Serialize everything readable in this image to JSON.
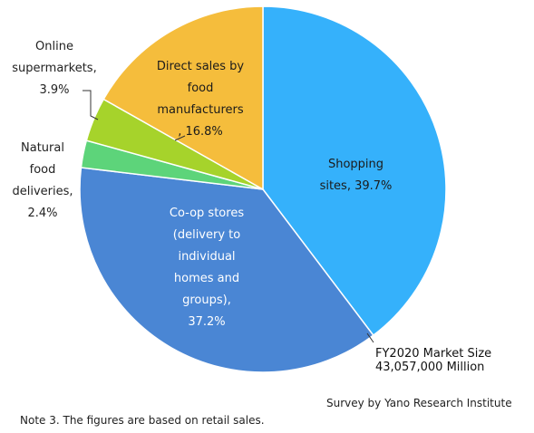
{
  "chart_data": {
    "type": "pie",
    "slices": [
      {
        "label": "Shopping sites, 39.7%",
        "value": 39.7,
        "color": "#35b1fb"
      },
      {
        "label": "Co-op stores (delivery to individual homes and groups), 37.2%",
        "value": 37.2,
        "color": "#4a86d4"
      },
      {
        "label": "Natural food deliveries, 2.4%",
        "value": 2.4,
        "color": "#5dd47a"
      },
      {
        "label": "Online supermarkets, 3.9%",
        "value": 3.9,
        "color": "#a6d32b"
      },
      {
        "label": "Direct sales by food manufacturers, 16.8%",
        "value": 16.8,
        "color": "#f5bd3c"
      }
    ],
    "label_lines": {
      "shopping": [
        "Shopping",
        "sites, 39.7%"
      ],
      "coop": [
        "Co-op stores",
        "(delivery to",
        "individual",
        "homes and",
        "groups),",
        "37.2%"
      ],
      "natural": [
        "Natural",
        "food",
        "deliveries,",
        "2.4%"
      ],
      "online": [
        "Online",
        "supermarkets,",
        "3.9%"
      ],
      "direct": [
        "Direct sales by",
        "food",
        "manufacturers",
        ", 16.8%"
      ]
    },
    "start_angle_deg": 0,
    "direction": "clockwise",
    "legend": "none"
  },
  "annotations": {
    "market_size_line1": "FY2020 Market Size",
    "market_size_line2": "43,057,000 Million",
    "source": "Survey by Yano Research Institute",
    "note": "Note 3. The figures are based on retail sales."
  }
}
